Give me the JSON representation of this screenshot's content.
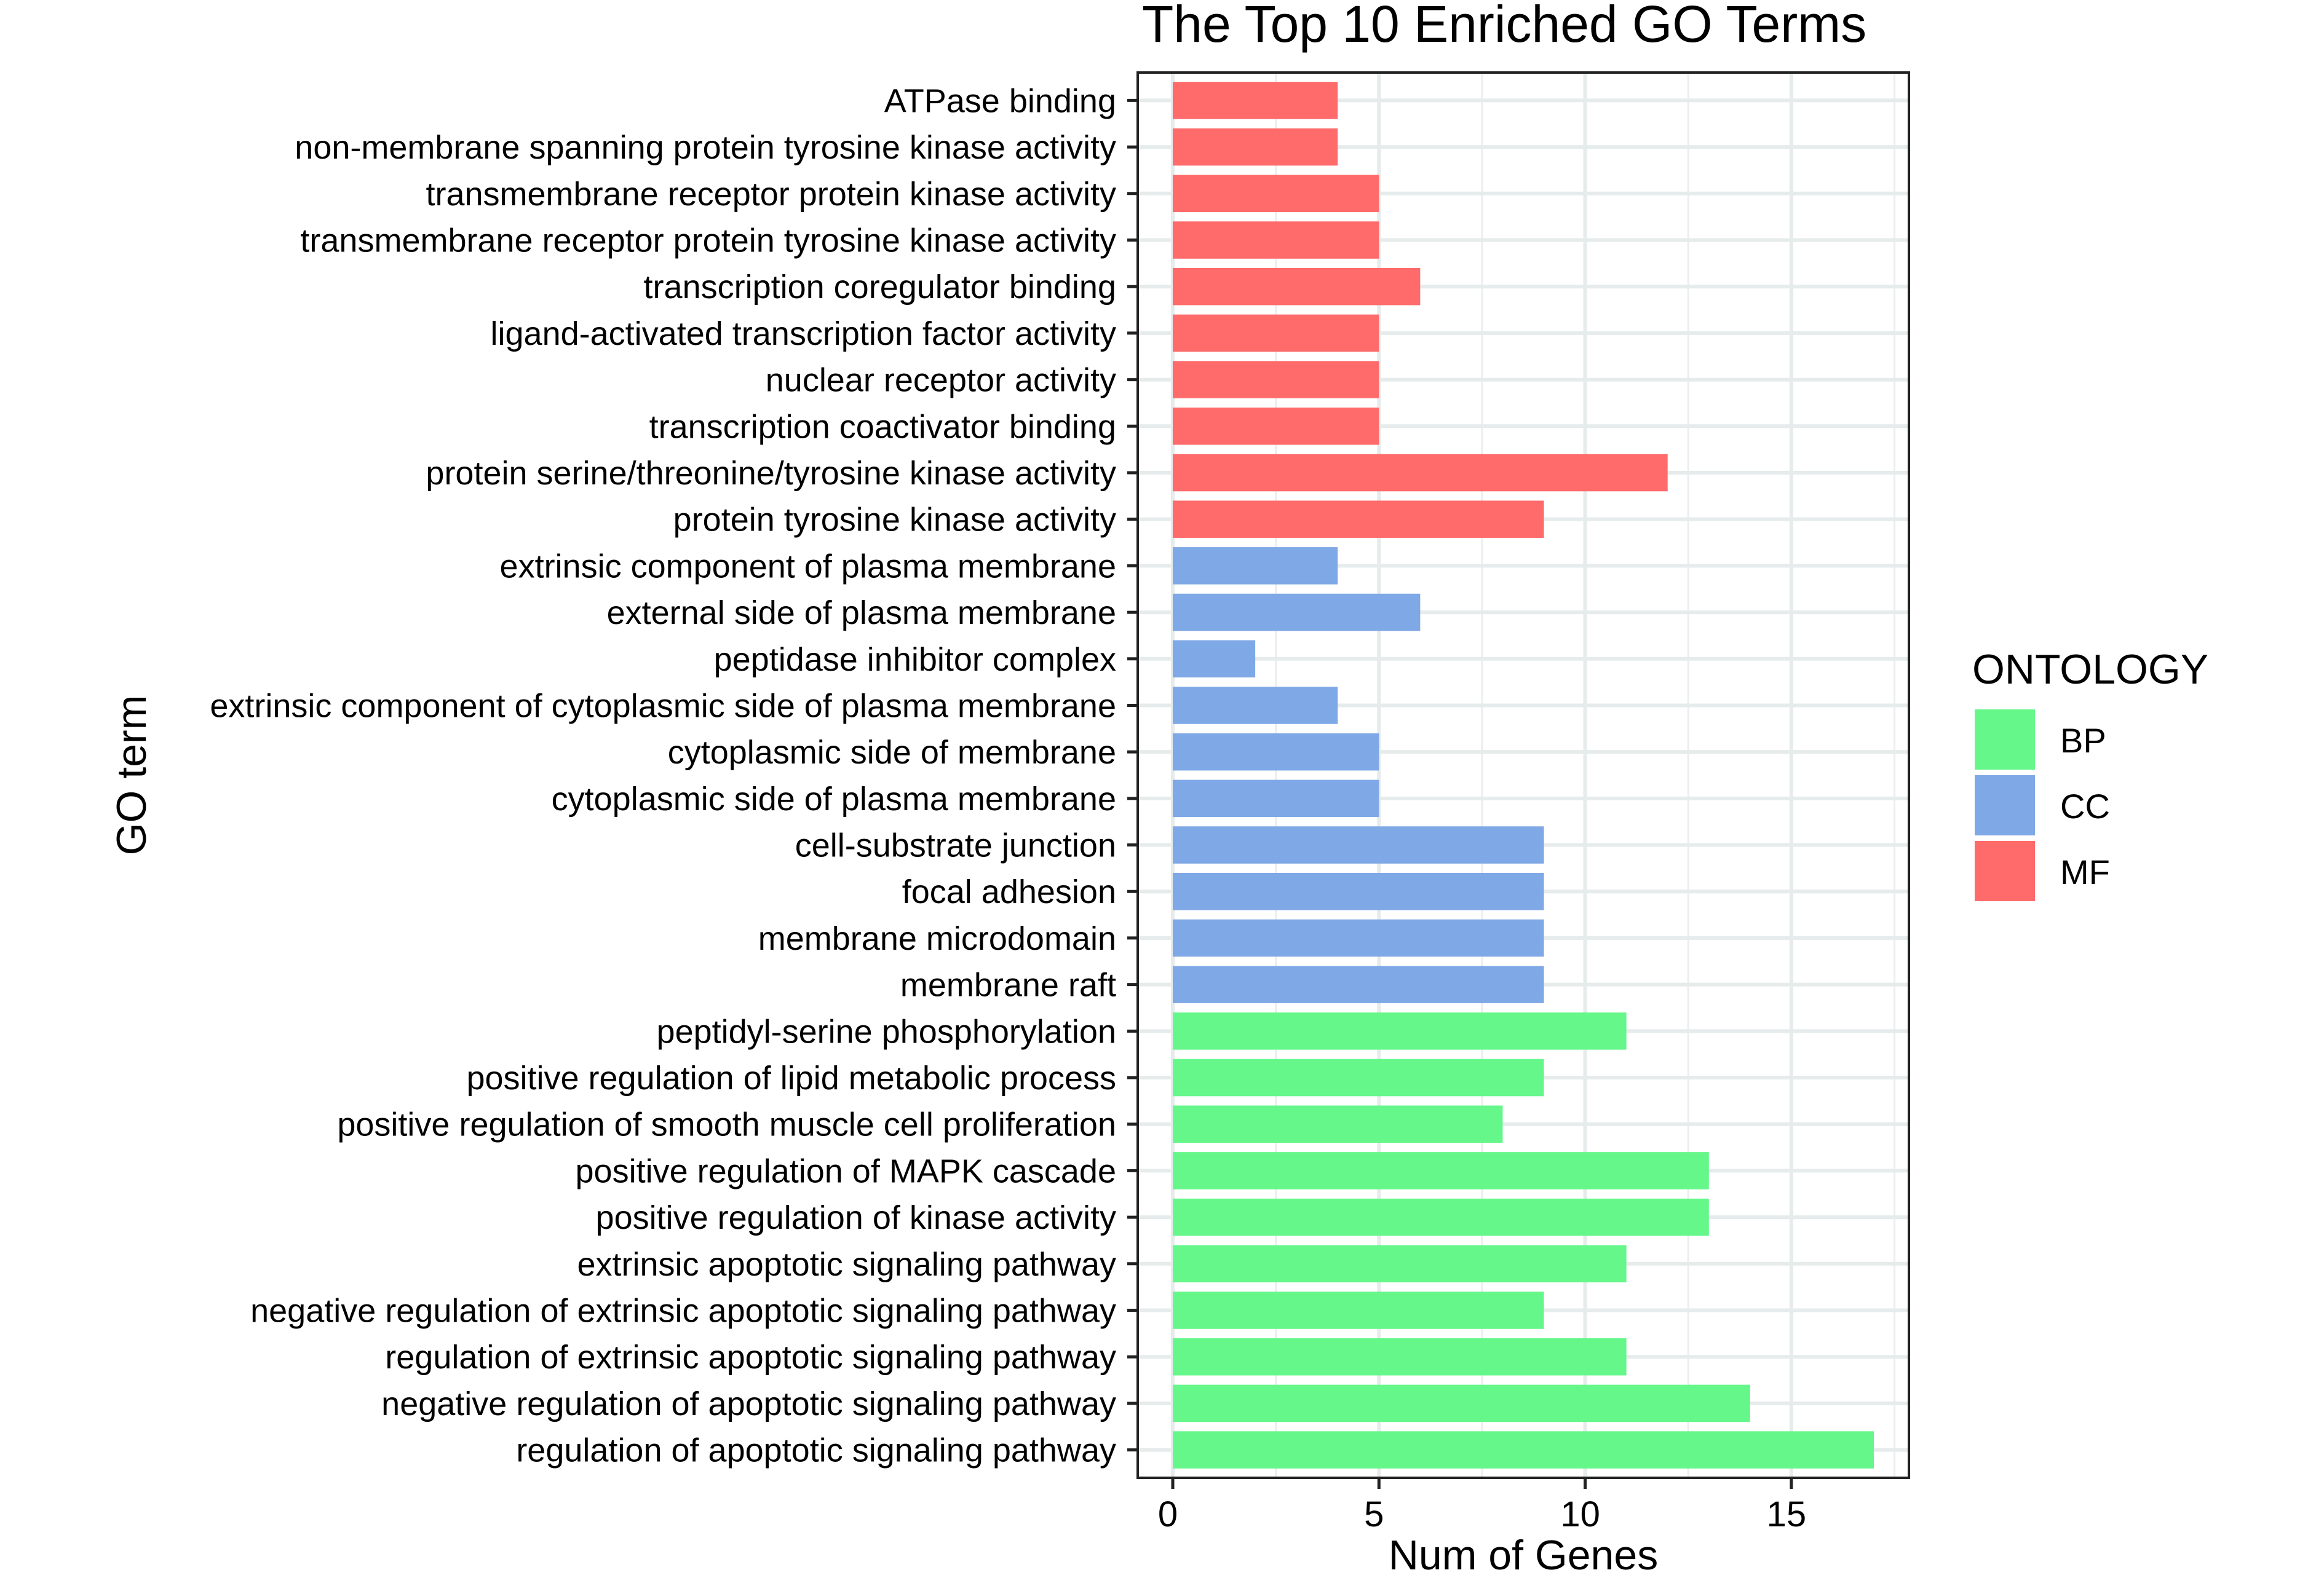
{
  "chart_data": {
    "type": "bar",
    "orientation": "horizontal",
    "title": "The Top 10 Enriched GO Terms",
    "xlabel": "Num of Genes",
    "ylabel": "GO term",
    "xlim": [
      -0.85,
      17.85
    ],
    "xticks": [
      0,
      5,
      10,
      15
    ],
    "grid": true,
    "legend": {
      "title": "ONTOLOGY",
      "placement": "right",
      "entries": [
        {
          "label": "BP",
          "color": "#66f78b"
        },
        {
          "label": "CC",
          "color": "#7fa8e6"
        },
        {
          "label": "MF",
          "color": "#ff6b6b"
        }
      ]
    },
    "colors": {
      "BP": "#66f78b",
      "CC": "#7fa8e6",
      "MF": "#ff6b6b"
    },
    "categories": [
      "ATPase binding",
      "non-membrane spanning protein tyrosine kinase activity",
      "transmembrane receptor protein kinase activity",
      "transmembrane receptor protein tyrosine kinase activity",
      "transcription coregulator binding",
      "ligand-activated transcription factor activity",
      "nuclear receptor activity",
      "transcription coactivator binding",
      "protein serine/threonine/tyrosine kinase activity",
      "protein tyrosine kinase activity",
      "extrinsic component of plasma membrane",
      "external side of plasma membrane",
      "peptidase inhibitor complex",
      "extrinsic component of cytoplasmic side of plasma membrane",
      "cytoplasmic side of membrane",
      "cytoplasmic side of plasma membrane",
      "cell-substrate junction",
      "focal adhesion",
      "membrane microdomain",
      "membrane raft",
      "peptidyl-serine phosphorylation",
      "positive regulation of lipid metabolic process",
      "positive regulation of smooth muscle cell proliferation",
      "positive regulation of MAPK cascade",
      "positive regulation of kinase activity",
      "extrinsic apoptotic signaling pathway",
      "negative regulation of extrinsic apoptotic signaling pathway",
      "regulation of extrinsic apoptotic signaling pathway",
      "negative regulation of apoptotic signaling pathway",
      "regulation of apoptotic signaling pathway"
    ],
    "values": [
      4,
      4,
      5,
      5,
      6,
      5,
      5,
      5,
      12,
      9,
      4,
      6,
      2,
      4,
      5,
      5,
      9,
      9,
      9,
      9,
      11,
      9,
      8,
      13,
      13,
      11,
      9,
      11,
      14,
      17
    ],
    "ontology": [
      "MF",
      "MF",
      "MF",
      "MF",
      "MF",
      "MF",
      "MF",
      "MF",
      "MF",
      "MF",
      "CC",
      "CC",
      "CC",
      "CC",
      "CC",
      "CC",
      "CC",
      "CC",
      "CC",
      "CC",
      "BP",
      "BP",
      "BP",
      "BP",
      "BP",
      "BP",
      "BP",
      "BP",
      "BP",
      "BP"
    ]
  }
}
